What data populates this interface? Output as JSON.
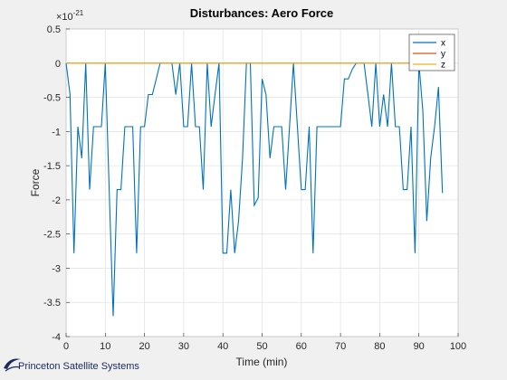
{
  "chart_data": {
    "type": "line",
    "title": "Disturbances: Aero Force",
    "xlabel": "Time (min)",
    "ylabel": "Force",
    "exponent_label": "×10",
    "exponent_power": "-21",
    "xlim": [
      0,
      100
    ],
    "ylim": [
      -4,
      0.5
    ],
    "xticks": [
      0,
      10,
      20,
      30,
      40,
      50,
      60,
      70,
      80,
      90,
      100
    ],
    "yticks": [
      -4,
      -3.5,
      -3,
      -2.5,
      -2,
      -1.5,
      -1,
      -0.5,
      0,
      0.5
    ],
    "grid": true,
    "legend_position": "top-right",
    "series": [
      {
        "name": "x",
        "color": "#0072bd",
        "x": [
          0,
          1,
          2,
          3,
          4,
          5,
          6,
          7,
          8,
          9,
          10,
          11,
          12,
          13,
          14,
          15,
          16,
          17,
          18,
          19,
          20,
          21,
          22,
          23,
          24,
          25,
          26,
          27,
          28,
          29,
          30,
          31,
          32,
          33,
          34,
          35,
          36,
          37,
          38,
          39,
          40,
          41,
          42,
          43,
          44,
          45,
          46,
          47,
          48,
          49,
          50,
          51,
          52,
          53,
          54,
          55,
          56,
          57,
          58,
          59,
          60,
          61,
          62,
          63,
          64,
          65,
          66,
          67,
          68,
          69,
          70,
          71,
          72,
          73,
          74,
          75,
          76,
          77,
          78,
          79,
          80,
          81,
          82,
          83,
          84,
          85,
          86,
          87,
          88,
          89,
          90,
          91,
          92,
          93,
          94,
          95,
          96
        ],
        "y": [
          0,
          -0.45,
          -2.78,
          -0.93,
          -1.39,
          0,
          -1.85,
          -0.93,
          -0.93,
          -0.93,
          0,
          -1.85,
          -3.7,
          -1.85,
          -1.85,
          -0.93,
          -0.93,
          -0.93,
          -2.78,
          -0.93,
          -0.93,
          -0.46,
          -0.46,
          -0.23,
          0,
          0,
          0,
          0,
          -0.46,
          0,
          -0.93,
          -0.93,
          0,
          -0.93,
          -0.93,
          -1.85,
          0,
          -0.93,
          -0.46,
          0,
          -2.78,
          -2.78,
          -1.85,
          -2.78,
          -2.31,
          -1.39,
          0,
          0,
          -2.08,
          -1.97,
          -0.23,
          -0.46,
          -1.39,
          -0.93,
          -0.93,
          -0.93,
          -1.85,
          -0.93,
          0,
          -0.93,
          -1.85,
          -1.85,
          -0.93,
          -2.78,
          -0.93,
          -0.93,
          -0.93,
          -0.93,
          -0.93,
          -0.93,
          -0.93,
          -0.23,
          -0.23,
          -0.09,
          0,
          0,
          0,
          -0.46,
          -0.93,
          0,
          -0.93,
          -0.46,
          -0.93,
          0,
          -0.93,
          -0.93,
          -1.85,
          -1.85,
          -0.93,
          -2.78,
          0,
          -0.69,
          -2.31,
          -1.39,
          -0.93,
          -0.35,
          -1.9
        ]
      },
      {
        "name": "y",
        "color": "#d95319",
        "x": [
          0,
          96
        ],
        "y": [
          0,
          0
        ]
      },
      {
        "name": "z",
        "color": "#edb120",
        "x": [
          0,
          96
        ],
        "y": [
          0,
          0
        ]
      }
    ]
  },
  "branding": {
    "company": "Princeton Satellite Systems"
  }
}
